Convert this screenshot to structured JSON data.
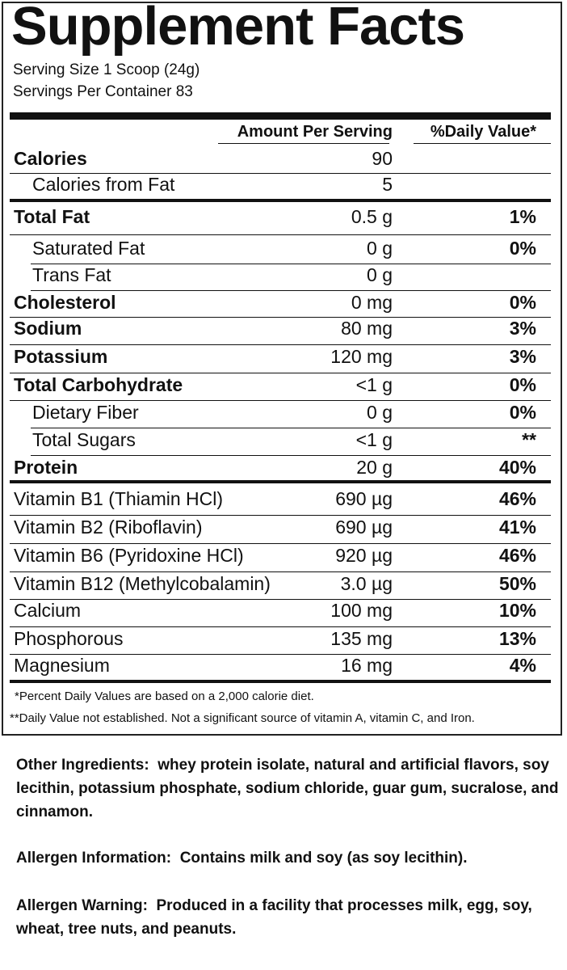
{
  "header": {
    "title": "Supplement Facts",
    "serving_size": "Serving Size 1 Scoop (24g)",
    "servings_per_container": "Servings Per Container 83"
  },
  "table": {
    "column_headers": [
      "Amount Per Serving",
      "%Daily Value*"
    ],
    "rows": [
      {
        "name": "Calories",
        "amount": "90"
      },
      {
        "name": "Calories from Fat",
        "amount": "5"
      },
      {
        "name": "Total Fat",
        "amount": "0.5 g",
        "daily_value": "1%"
      },
      {
        "name": "Saturated Fat",
        "amount": "0 g",
        "daily_value": "0%"
      },
      {
        "name": "Trans Fat",
        "amount": "0 g"
      },
      {
        "name": "Cholesterol",
        "amount": "0 mg",
        "daily_value": "0%"
      },
      {
        "name": "Sodium",
        "amount": "80 mg",
        "daily_value": "3%"
      },
      {
        "name": "Potassium",
        "amount": "120 mg",
        "daily_value": "3%"
      },
      {
        "name": "Total Carbohydrate",
        "amount": "<1 g",
        "daily_value": "0%"
      },
      {
        "name": "Dietary Fiber",
        "amount": "0 g",
        "daily_value": "0%"
      },
      {
        "name": "Total Sugars",
        "amount": "<1 g",
        "daily_value": "**"
      },
      {
        "name": "Protein",
        "amount": "20 g",
        "daily_value": "40%"
      },
      {
        "name": "Vitamin B1 (Thiamin HCl)",
        "amount": "690 µg",
        "daily_value": "46%"
      },
      {
        "name": "Vitamin B2 (Riboflavin)",
        "amount": "690 µg",
        "daily_value": "41%"
      },
      {
        "name": "Vitamin B6 (Pyridoxine HCl)",
        "amount": "920 µg",
        "daily_value": "46%"
      },
      {
        "name": "Vitamin B12 (Methylcobalamin)",
        "amount": "3.0 µg",
        "daily_value": "50%"
      },
      {
        "name": "Calcium",
        "amount": "100 mg",
        "daily_value": "10%"
      },
      {
        "name": "Phosphorous",
        "amount": "135 mg",
        "daily_value": "13%"
      },
      {
        "name": "Magnesium",
        "amount": "16 mg",
        "daily_value": "4%"
      }
    ]
  },
  "footnotes": [
    "*Percent Daily Values are based on a 2,000 calorie diet.",
    "**Daily Value not established.  Not a significant source of vitamin A, vitamin C, and Iron."
  ],
  "other_ingredients": {
    "label": "Other Ingredients:",
    "text": "whey protein isolate, natural and artificial flavors, soy lecithin, potassium phosphate, sodium chloride, guar gum,  sucralose, and cinnamon."
  },
  "allergen_information": {
    "label": "Allergen Information:",
    "text": "Contains milk and soy (as soy lecithin)."
  },
  "allergen_warning": {
    "label": "Allergen Warning:",
    "text": "Produced in a facility that processes milk, egg, soy, wheat, tree nuts, and peanuts."
  }
}
